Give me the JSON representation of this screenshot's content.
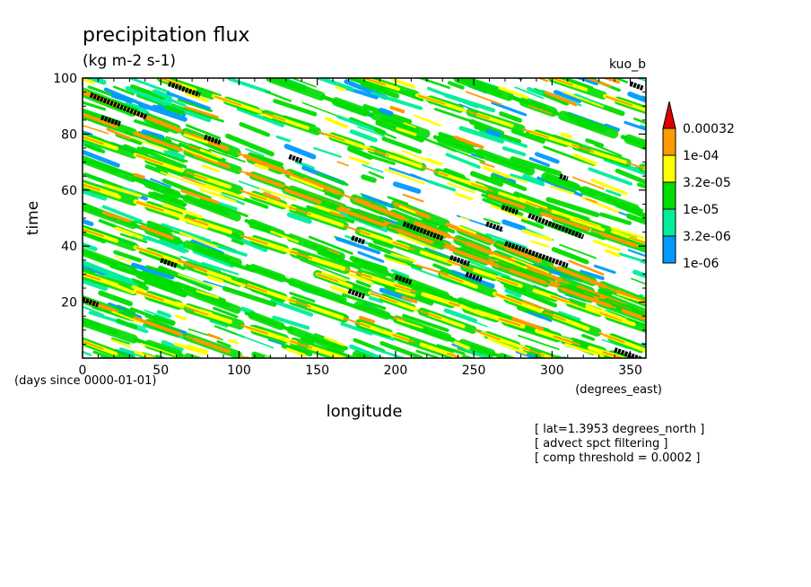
{
  "chart_data": {
    "type": "heatmap",
    "title": "precipitation flux",
    "subtitle": "(kg m-2 s-1)",
    "tag": "kuo_b",
    "xlabel": "longitude",
    "x_unit": "(degrees_east)",
    "ylabel": "time",
    "y_unit": "(days since 0000-01-01)",
    "xlim": [
      0,
      360
    ],
    "ylim": [
      0,
      100
    ],
    "x_ticks": [
      0,
      50,
      100,
      150,
      200,
      250,
      300,
      350
    ],
    "y_ticks": [
      20,
      40,
      60,
      80,
      100
    ],
    "legend": {
      "placement": "right",
      "levels": [
        "0.00032",
        "1e-04",
        "3.2e-05",
        "1e-05",
        "3.2e-06",
        "1e-06"
      ],
      "colors": [
        "#ff9900",
        "#ffff00",
        "#00dd00",
        "#00ee99",
        "#0099ff"
      ],
      "over_color": "#dd0000"
    },
    "bands": [
      {
        "lon0": 0,
        "t0": 95,
        "slope": -0.22,
        "width": 1.2,
        "level": 5
      },
      {
        "lon0": 0,
        "t0": 87,
        "slope": -0.2,
        "width": 1.0,
        "level": 5
      },
      {
        "lon0": 0,
        "t0": 79,
        "slope": -0.19,
        "width": 1.1,
        "level": 4
      },
      {
        "lon0": 0,
        "t0": 71,
        "slope": -0.21,
        "width": 1.0,
        "level": 3
      },
      {
        "lon0": 0,
        "t0": 62,
        "slope": -0.18,
        "width": 1.2,
        "level": 4
      },
      {
        "lon0": 0,
        "t0": 54,
        "slope": -0.2,
        "width": 1.0,
        "level": 3
      },
      {
        "lon0": 0,
        "t0": 46,
        "slope": -0.19,
        "width": 1.1,
        "level": 4
      },
      {
        "lon0": 0,
        "t0": 38,
        "slope": -0.21,
        "width": 1.0,
        "level": 3
      },
      {
        "lon0": 0,
        "t0": 30,
        "slope": -0.18,
        "width": 1.2,
        "level": 4
      },
      {
        "lon0": 0,
        "t0": 21,
        "slope": -0.2,
        "width": 1.0,
        "level": 5
      },
      {
        "lon0": 0,
        "t0": 13,
        "slope": -0.19,
        "width": 1.1,
        "level": 3
      },
      {
        "lon0": 0,
        "t0": 6,
        "slope": -0.21,
        "width": 1.0,
        "level": 4
      },
      {
        "lon0": 50,
        "t0": 100,
        "slope": -0.19,
        "width": 1.0,
        "level": 4
      },
      {
        "lon0": 120,
        "t0": 100,
        "slope": -0.2,
        "width": 1.1,
        "level": 3
      },
      {
        "lon0": 180,
        "t0": 100,
        "slope": -0.18,
        "width": 1.0,
        "level": 4
      },
      {
        "lon0": 240,
        "t0": 100,
        "slope": -0.2,
        "width": 1.2,
        "level": 3
      },
      {
        "lon0": 300,
        "t0": 100,
        "slope": -0.19,
        "width": 1.0,
        "level": 4
      },
      {
        "lon0": 130,
        "t0": 60,
        "slope": -0.2,
        "width": 1.0,
        "level": 5
      },
      {
        "lon0": 200,
        "t0": 55,
        "slope": -0.22,
        "width": 1.1,
        "level": 5
      },
      {
        "lon0": 260,
        "t0": 58,
        "slope": -0.19,
        "width": 1.0,
        "level": 5
      },
      {
        "lon0": 150,
        "t0": 30,
        "slope": -0.2,
        "width": 1.0,
        "level": 4
      },
      {
        "lon0": 230,
        "t0": 30,
        "slope": -0.21,
        "width": 1.1,
        "level": 4
      }
    ],
    "peaks": [
      {
        "lon": 5,
        "t": 94,
        "len": 36,
        "slope": -0.22
      },
      {
        "lon": 12,
        "t": 86,
        "len": 12,
        "slope": -0.2
      },
      {
        "lon": 55,
        "t": 98,
        "len": 20,
        "slope": -0.2
      },
      {
        "lon": 78,
        "t": 79,
        "len": 10,
        "slope": -0.2
      },
      {
        "lon": 132,
        "t": 72,
        "len": 8,
        "slope": -0.2
      },
      {
        "lon": 172,
        "t": 43,
        "len": 8,
        "slope": -0.2
      },
      {
        "lon": 205,
        "t": 48,
        "len": 25,
        "slope": -0.21
      },
      {
        "lon": 258,
        "t": 48,
        "len": 10,
        "slope": -0.2
      },
      {
        "lon": 268,
        "t": 54,
        "len": 10,
        "slope": -0.2
      },
      {
        "lon": 285,
        "t": 51,
        "len": 35,
        "slope": -0.22
      },
      {
        "lon": 305,
        "t": 65,
        "len": 5,
        "slope": -0.2
      },
      {
        "lon": 270,
        "t": 41,
        "len": 40,
        "slope": -0.2
      },
      {
        "lon": 235,
        "t": 36,
        "len": 12,
        "slope": -0.2
      },
      {
        "lon": 245,
        "t": 30,
        "len": 10,
        "slope": -0.2
      },
      {
        "lon": 200,
        "t": 29,
        "len": 10,
        "slope": -0.2
      },
      {
        "lon": 170,
        "t": 24,
        "len": 10,
        "slope": -0.2
      },
      {
        "lon": 50,
        "t": 35,
        "len": 10,
        "slope": -0.2
      },
      {
        "lon": 0,
        "t": 21,
        "len": 10,
        "slope": -0.2
      },
      {
        "lon": 340,
        "t": 3,
        "len": 20,
        "slope": -0.2
      },
      {
        "lon": 350,
        "t": 98,
        "len": 8,
        "slope": -0.2
      }
    ]
  },
  "annotations": [
    "[ lat=1.3953 degrees_north ]",
    "[ advect spct filtering ]",
    "[ comp threshold = 0.0002 ]"
  ]
}
